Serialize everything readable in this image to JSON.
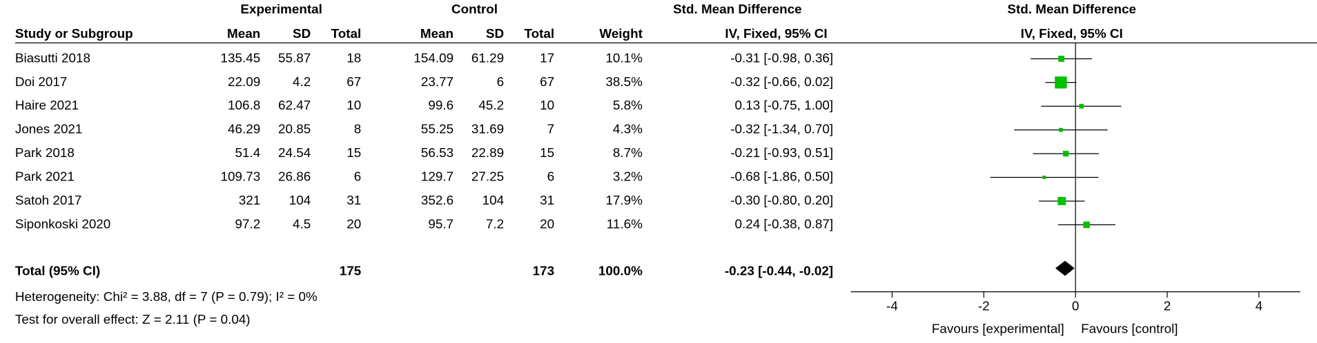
{
  "header": {
    "group1": "Experimental",
    "group2": "Control",
    "effect_title": "Std. Mean Difference",
    "plot_title": "Std. Mean Difference",
    "columns": [
      "Study or Subgroup",
      "Mean",
      "SD",
      "Total",
      "Mean",
      "SD",
      "Total",
      "Weight",
      "IV, Fixed, 95% CI"
    ],
    "plot_subtitle": "IV, Fixed, 95% CI"
  },
  "table": {
    "rows": [
      [
        "Biasutti 2018",
        "135.45",
        "55.87",
        "18",
        "154.09",
        "61.29",
        "17",
        "10.1%",
        "-0.31 [-0.98, 0.36]"
      ],
      [
        "Doi 2017",
        "22.09",
        "4.2",
        "67",
        "23.77",
        "6",
        "67",
        "38.5%",
        "-0.32 [-0.66, 0.02]"
      ],
      [
        "Haire 2021",
        "106.8",
        "62.47",
        "10",
        "99.6",
        "45.2",
        "10",
        "5.8%",
        "0.13 [-0.75, 1.00]"
      ],
      [
        "Jones 2021",
        "46.29",
        "20.85",
        "8",
        "55.25",
        "31.69",
        "7",
        "4.3%",
        "-0.32 [-1.34, 0.70]"
      ],
      [
        "Park 2018",
        "51.4",
        "24.54",
        "15",
        "56.53",
        "22.89",
        "15",
        "8.7%",
        "-0.21 [-0.93, 0.51]"
      ],
      [
        "Park 2021",
        "109.73",
        "26.86",
        "6",
        "129.7",
        "27.25",
        "6",
        "3.2%",
        "-0.68 [-1.86, 0.50]"
      ],
      [
        "Satoh 2017",
        "321",
        "104",
        "31",
        "352.6",
        "104",
        "31",
        "17.9%",
        "-0.30 [-0.80, 0.20]"
      ],
      [
        "Siponkoski 2020",
        "97.2",
        "4.5",
        "20",
        "95.7",
        "7.2",
        "20",
        "11.6%",
        "0.24 [-0.38, 0.87]"
      ]
    ],
    "total": [
      "Total (95% CI)",
      "175",
      "173",
      "100.0%",
      "-0.23 [-0.44, -0.02]"
    ]
  },
  "footer": {
    "heterogeneity": "Heterogeneity: Chi² = 3.88, df = 7 (P = 0.79); I² = 0%",
    "overall": "Test for overall effect: Z = 2.11 (P = 0.04)"
  },
  "chart_data": {
    "type": "forest",
    "values": [
      -0.31,
      -0.32,
      0.13,
      -0.32,
      -0.21,
      -0.68,
      -0.3,
      0.24
    ],
    "lower": [
      -0.98,
      -0.66,
      -0.75,
      -1.34,
      -0.93,
      -1.86,
      -0.8,
      -0.38
    ],
    "upper": [
      0.36,
      0.02,
      1.0,
      0.7,
      0.51,
      0.5,
      0.2,
      0.87
    ],
    "weights": [
      10.1,
      38.5,
      5.8,
      4.3,
      8.7,
      3.2,
      17.9,
      11.6
    ],
    "color": "#00c000",
    "total": {
      "value": -0.23,
      "lower": -0.44,
      "upper": -0.02
    },
    "xlim": [
      -4.9,
      4.9
    ],
    "xticks": [
      -4,
      -2,
      0,
      2,
      4
    ],
    "x_labels": [
      "Favours [experimental]",
      "Favours [control]"
    ]
  }
}
